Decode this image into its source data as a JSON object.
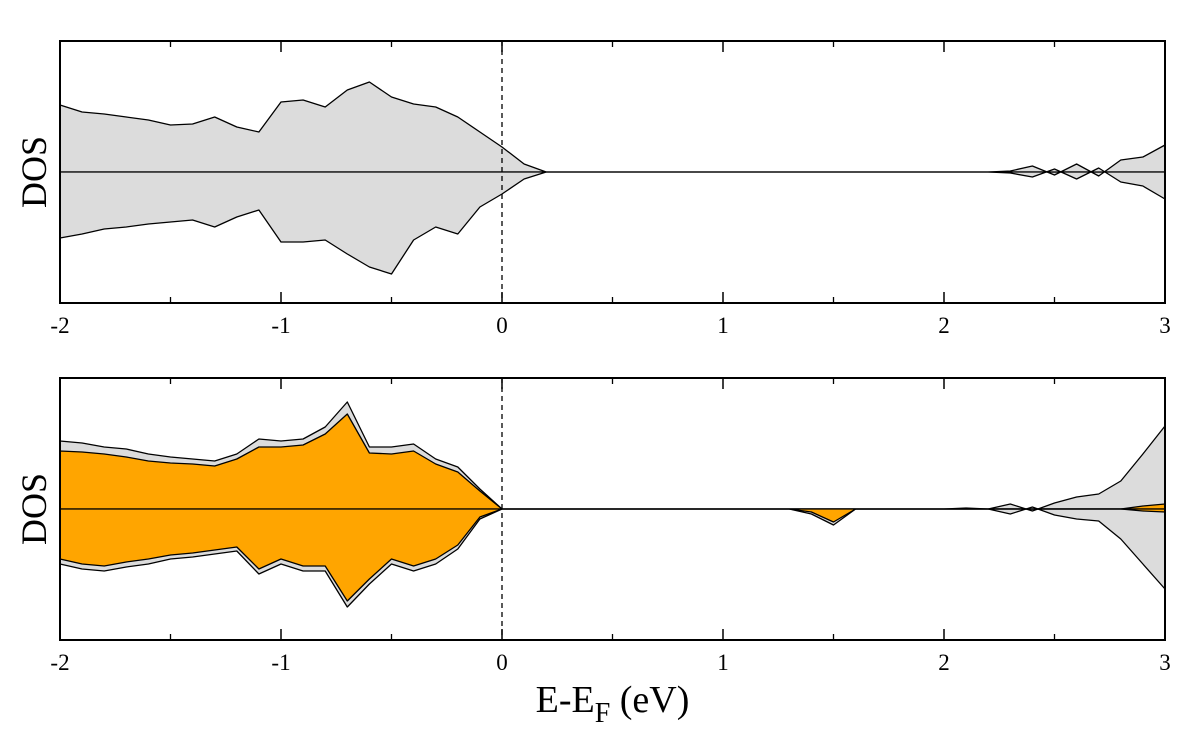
{
  "chart_data": [
    {
      "type": "area",
      "ylabel": "DOS",
      "x": [
        -2.0,
        -1.9,
        -1.8,
        -1.7,
        -1.6,
        -1.5,
        -1.4,
        -1.3,
        -1.2,
        -1.1,
        -1.0,
        -0.9,
        -0.8,
        -0.7,
        -0.6,
        -0.5,
        -0.4,
        -0.3,
        -0.2,
        -0.1,
        0.0,
        0.1,
        0.2,
        0.3,
        0.4,
        0.5,
        0.6,
        0.7,
        0.8,
        0.9,
        1.0,
        1.1,
        1.2,
        1.3,
        1.4,
        1.5,
        1.6,
        1.7,
        1.8,
        1.9,
        2.0,
        2.1,
        2.2,
        2.3,
        2.4,
        2.5,
        2.6,
        2.7,
        2.8,
        2.9,
        3.0
      ],
      "series": [
        {
          "color": "#dcdcdc",
          "values": [
            0.67,
            0.6,
            0.58,
            0.55,
            0.52,
            0.47,
            0.48,
            0.55,
            0.45,
            0.4,
            0.7,
            0.72,
            0.65,
            0.82,
            0.9,
            0.75,
            0.68,
            0.65,
            0.55,
            0.4,
            0.25,
            0.08,
            0,
            0,
            0,
            0,
            0,
            0,
            0,
            0,
            0,
            0,
            0,
            0,
            0,
            0,
            0,
            0,
            0,
            0,
            0,
            0,
            0,
            0.01,
            0.06,
            -0.03,
            0.08,
            -0.04,
            0.12,
            0.15,
            0.27
          ]
        },
        {
          "color": "#dcdcdc",
          "values": [
            -0.66,
            -0.62,
            -0.57,
            -0.55,
            -0.52,
            -0.5,
            -0.48,
            -0.55,
            -0.45,
            -0.38,
            -0.7,
            -0.7,
            -0.68,
            -0.82,
            -0.95,
            -1.02,
            -0.68,
            -0.55,
            -0.62,
            -0.35,
            -0.22,
            -0.07,
            0,
            0,
            0,
            0,
            0,
            0,
            0,
            0,
            0,
            0,
            0,
            0,
            0,
            0,
            0,
            0,
            0,
            0,
            0,
            0,
            0,
            -0.01,
            -0.05,
            0.03,
            -0.07,
            0.04,
            -0.1,
            -0.14,
            -0.27
          ]
        }
      ],
      "xlim": [
        -2,
        3
      ],
      "ylim": [
        -1.31,
        1.31
      ],
      "xticks": [
        -2,
        -1,
        0,
        1,
        2,
        3
      ],
      "xminor": [
        -1.5,
        -0.5,
        0.5,
        1.5,
        2.5
      ],
      "vlines": [
        0
      ]
    },
    {
      "type": "area",
      "ylabel": "DOS",
      "xlabel": [
        "E-E",
        "F",
        " (eV)"
      ],
      "x": [
        -2.0,
        -1.9,
        -1.8,
        -1.7,
        -1.6,
        -1.5,
        -1.4,
        -1.3,
        -1.2,
        -1.1,
        -1.0,
        -0.9,
        -0.8,
        -0.7,
        -0.6,
        -0.5,
        -0.4,
        -0.3,
        -0.2,
        -0.1,
        0.0,
        0.1,
        0.2,
        0.3,
        0.4,
        0.5,
        0.6,
        0.7,
        0.8,
        0.9,
        1.0,
        1.1,
        1.2,
        1.3,
        1.4,
        1.5,
        1.6,
        1.7,
        1.8,
        1.9,
        2.0,
        2.1,
        2.2,
        2.3,
        2.4,
        2.5,
        2.6,
        2.7,
        2.8,
        2.9,
        3.0
      ],
      "series": [
        {
          "color": "#dcdcdc",
          "values": [
            0.68,
            0.66,
            0.62,
            0.6,
            0.55,
            0.52,
            0.5,
            0.48,
            0.55,
            0.7,
            0.68,
            0.7,
            0.82,
            1.07,
            0.62,
            0.62,
            0.65,
            0.5,
            0.42,
            0.2,
            0,
            0,
            0,
            0,
            0,
            0,
            0,
            0,
            0,
            0,
            0,
            0,
            0,
            0,
            0,
            0,
            0,
            0,
            0,
            0,
            0,
            0.01,
            0,
            0.05,
            -0.02,
            0.06,
            0.12,
            0.15,
            0.28,
            0.55,
            0.83
          ]
        },
        {
          "color": "#dcdcdc",
          "values": [
            -0.55,
            -0.6,
            -0.62,
            -0.58,
            -0.55,
            -0.5,
            -0.48,
            -0.45,
            -0.42,
            -0.65,
            -0.55,
            -0.62,
            -0.62,
            -0.98,
            -0.75,
            -0.55,
            -0.62,
            -0.55,
            -0.4,
            -0.1,
            0,
            0,
            0,
            0,
            0,
            0,
            0,
            0,
            0,
            0,
            0,
            0,
            0,
            0,
            -0.05,
            -0.16,
            0,
            0,
            0,
            0,
            0,
            0,
            0,
            -0.05,
            0.02,
            -0.06,
            -0.1,
            -0.12,
            -0.3,
            -0.55,
            -0.8
          ]
        },
        {
          "color": "#ffa500",
          "values": [
            0.58,
            0.57,
            0.55,
            0.52,
            0.48,
            0.46,
            0.45,
            0.43,
            0.5,
            0.62,
            0.62,
            0.64,
            0.75,
            0.95,
            0.56,
            0.55,
            0.58,
            0.45,
            0.37,
            0.18,
            0,
            0,
            0,
            0,
            0,
            0,
            0,
            0,
            0,
            0,
            0,
            0,
            0,
            0,
            0,
            0,
            0,
            0,
            0,
            0,
            0,
            0,
            0,
            0,
            0,
            0,
            0,
            0,
            0,
            0.03,
            0.05
          ]
        },
        {
          "color": "#ffa500",
          "values": [
            -0.5,
            -0.55,
            -0.57,
            -0.53,
            -0.5,
            -0.46,
            -0.44,
            -0.41,
            -0.38,
            -0.6,
            -0.5,
            -0.57,
            -0.57,
            -0.92,
            -0.7,
            -0.5,
            -0.57,
            -0.5,
            -0.36,
            -0.08,
            0,
            0,
            0,
            0,
            0,
            0,
            0,
            0,
            0,
            0,
            0,
            0,
            0,
            0,
            -0.03,
            -0.13,
            0,
            0,
            0,
            0,
            0,
            0,
            0,
            0,
            0,
            0,
            0,
            0,
            0,
            -0.02,
            -0.03
          ]
        }
      ],
      "xlim": [
        -2,
        3
      ],
      "ylim": [
        -1.31,
        1.31
      ],
      "xticks": [
        -2,
        -1,
        0,
        1,
        2,
        3
      ],
      "xminor": [
        -1.5,
        -0.5,
        0.5,
        1.5,
        2.5
      ],
      "vlines": [
        0
      ]
    }
  ]
}
